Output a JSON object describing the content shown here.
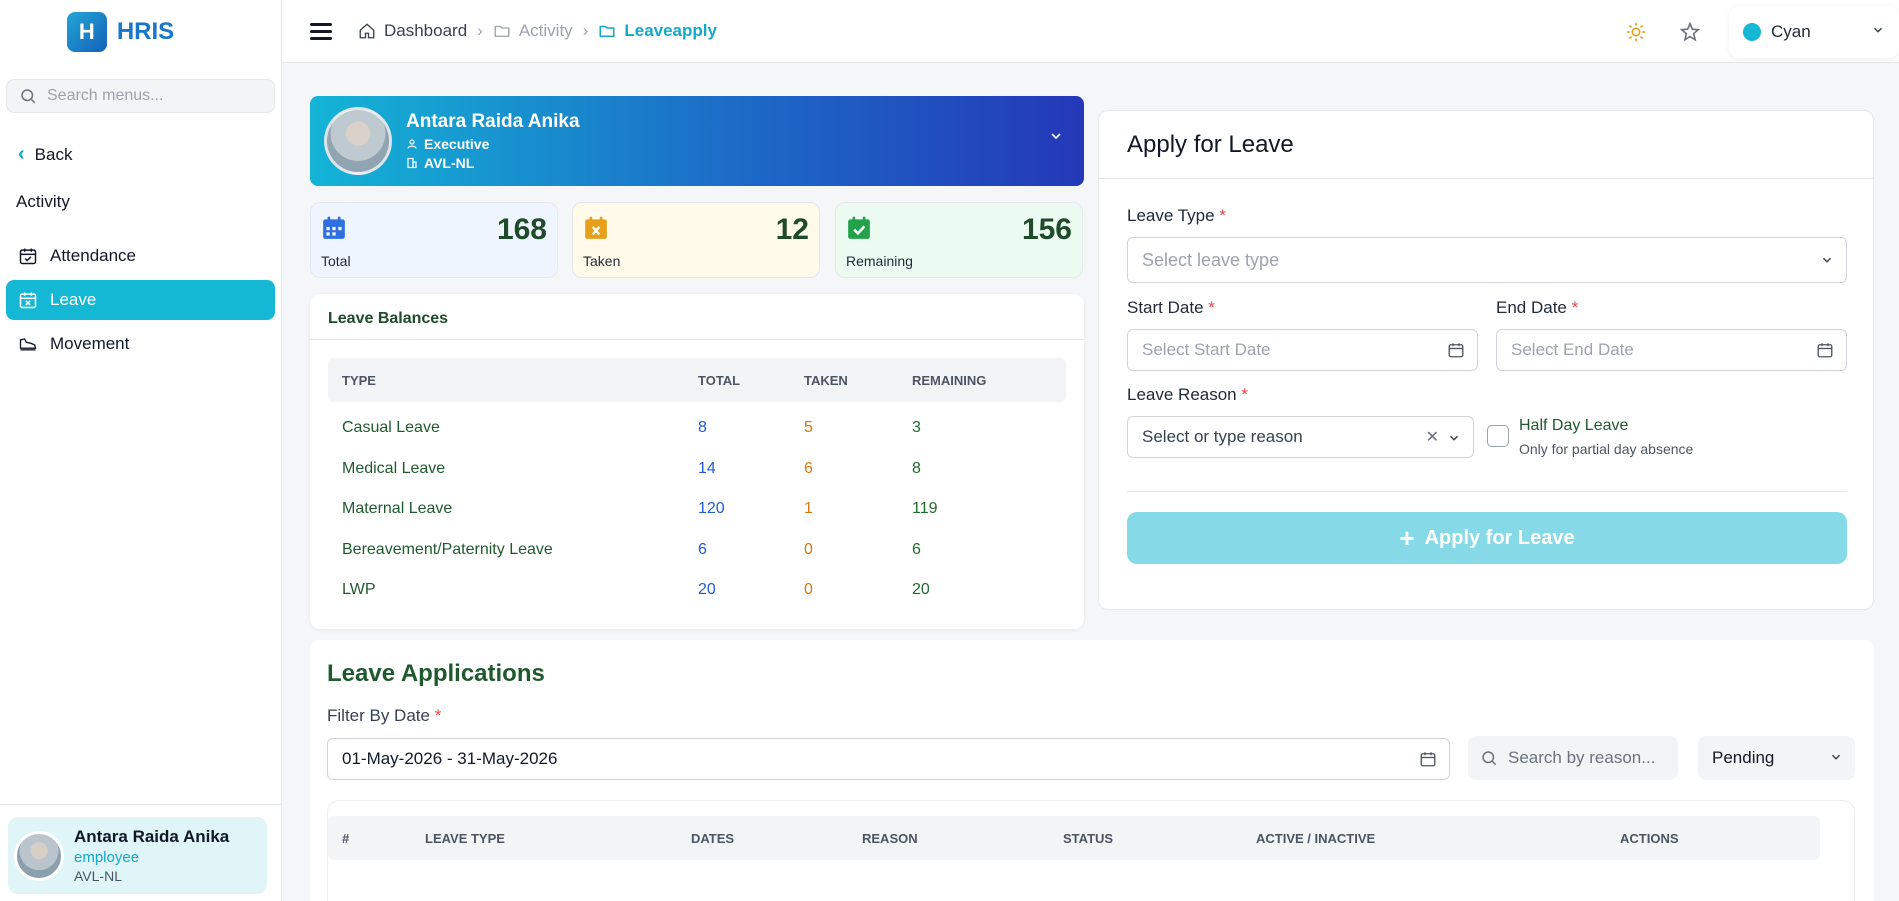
{
  "app": {
    "logo_letter": "H",
    "name": "HRIS"
  },
  "sidebar": {
    "search_placeholder": "Search menus...",
    "back_label": "Back",
    "section": "Activity",
    "items": [
      {
        "label": "Attendance",
        "icon": "calendar-check-icon",
        "active": false
      },
      {
        "label": "Leave",
        "icon": "calendar-x-icon",
        "active": true
      },
      {
        "label": "Movement",
        "icon": "shoe-icon",
        "active": false
      }
    ],
    "user": {
      "name": "Antara Raida Anika",
      "role": "employee",
      "org": "AVL-NL"
    }
  },
  "header": {
    "breadcrumbs": [
      "Dashboard",
      "Activity",
      "Leaveapply"
    ],
    "theme": {
      "name": "Cyan",
      "color": "#14b8d4"
    }
  },
  "profile": {
    "name": "Antara Raida Anika",
    "designation": "Executive",
    "org": "AVL-NL"
  },
  "stats": [
    {
      "label": "Total",
      "value": "168",
      "bg": "#eef5ff",
      "icon_color": "#2f6fe0"
    },
    {
      "label": "Taken",
      "value": "12",
      "bg": "#fffaea",
      "icon_color": "#e6a01a"
    },
    {
      "label": "Remaining",
      "value": "156",
      "bg": "#ecfbf1",
      "icon_color": "#23a14b"
    }
  ],
  "balances": {
    "title": "Leave Balances",
    "headers": [
      "TYPE",
      "TOTAL",
      "TAKEN",
      "REMAINING"
    ],
    "rows": [
      [
        "Casual Leave",
        "8",
        "5",
        "3"
      ],
      [
        "Medical Leave",
        "14",
        "6",
        "8"
      ],
      [
        "Maternal Leave",
        "120",
        "1",
        "119"
      ],
      [
        "Bereavement/Paternity Leave",
        "6",
        "0",
        "6"
      ],
      [
        "LWP",
        "20",
        "0",
        "20"
      ]
    ]
  },
  "apply": {
    "title": "Apply for Leave",
    "leave_type_label": "Leave Type",
    "leave_type_placeholder": "Select leave type",
    "start_label": "Start Date",
    "start_placeholder": "Select Start Date",
    "end_label": "End Date",
    "end_placeholder": "Select End Date",
    "reason_label": "Leave Reason",
    "reason_placeholder": "Select or type reason",
    "half_day_label": "Half Day Leave",
    "half_day_sub": "Only for partial day absence",
    "button": "Apply for Leave",
    "required_mark": "*"
  },
  "applications": {
    "title": "Leave Applications",
    "filter_label": "Filter By Date",
    "date_range": "01-May-2026 - 31-May-2026",
    "search_placeholder": "Search by reason...",
    "status": "Pending",
    "headers": [
      "#",
      "LEAVE TYPE",
      "DATES",
      "REASON",
      "STATUS",
      "ACTIVE / INACTIVE",
      "ACTIONS"
    ]
  }
}
